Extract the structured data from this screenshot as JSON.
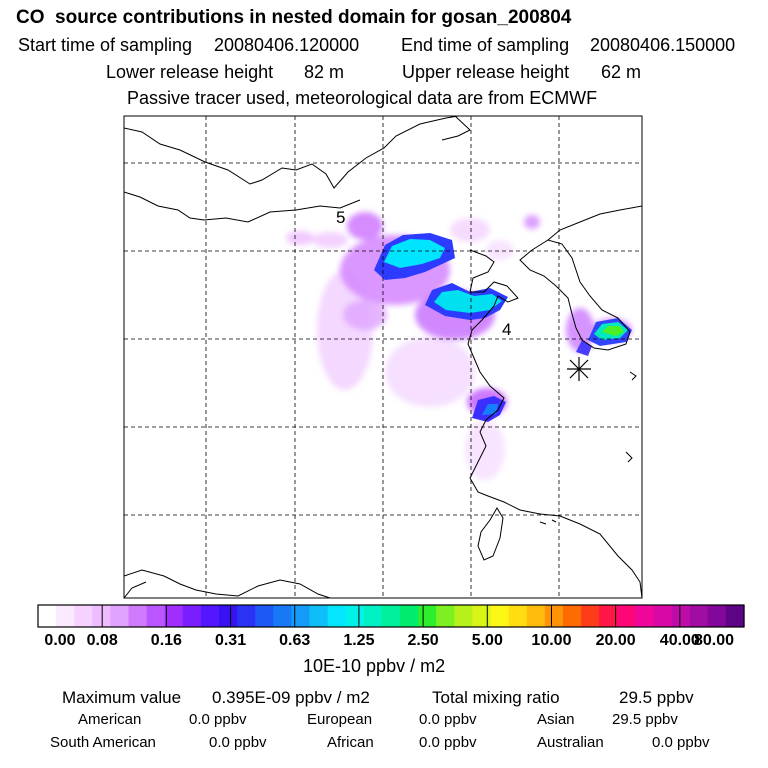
{
  "header": {
    "title": "CO  source contributions in nested domain for gosan_200804",
    "start_label": "Start time of sampling",
    "start_value": "20080406.120000",
    "end_label": "End time of sampling",
    "end_value": "20080406.150000",
    "lower_label": "Lower release height",
    "lower_value": "82 m",
    "upper_label": "Upper release height",
    "upper_value": "62 m",
    "tracer_note": "Passive tracer used, meteorological data are from ECMWF"
  },
  "map": {
    "markers": [
      {
        "label": "5"
      },
      {
        "label": "4"
      }
    ],
    "receptor": "receptor-star"
  },
  "colorbar": {
    "colors": [
      "#ffffff",
      "#fbe9ff",
      "#f5d2ff",
      "#eebcff",
      "#e2a2ff",
      "#cf7aff",
      "#bb55ff",
      "#a12dff",
      "#7a1dff",
      "#5416ff",
      "#3812f0",
      "#2a33f4",
      "#1e58f5",
      "#1879f7",
      "#129cf8",
      "#0dbef9",
      "#04e6ff",
      "#00f2e8",
      "#00f2c4",
      "#00f09c",
      "#00ec6e",
      "#2cee2c",
      "#7ef021",
      "#b6f21a",
      "#d9f515",
      "#fdf716",
      "#ffdd10",
      "#ffbc0c",
      "#ff9407",
      "#ff6b03",
      "#ff3c1a",
      "#ff1648",
      "#ff0678",
      "#f0069a",
      "#d808a6",
      "#bf0ba8",
      "#a10ca3",
      "#82079a",
      "#5e0385"
    ],
    "tick_labels": [
      "0.00",
      "0.08",
      "0.16",
      "0.31",
      "0.63",
      "1.25",
      "2.50",
      "5.00",
      "10.00",
      "20.00",
      "40.00",
      "80.00"
    ],
    "unit_label": "10E-10 ppbv / m2"
  },
  "summary": {
    "max_label": "Maximum value",
    "max_value": "0.395E-09 ppbv / m2",
    "total_label": "Total mixing ratio",
    "total_value": "29.5 ppbv",
    "contributions": [
      {
        "name": "American",
        "value": "0.0 ppbv"
      },
      {
        "name": "European",
        "value": "0.0 ppbv"
      },
      {
        "name": "Asian",
        "value": "29.5 ppbv"
      },
      {
        "name": "South American",
        "value": "0.0 ppbv"
      },
      {
        "name": "African",
        "value": "0.0 ppbv"
      },
      {
        "name": "Australian",
        "value": "0.0 ppbv"
      }
    ]
  }
}
